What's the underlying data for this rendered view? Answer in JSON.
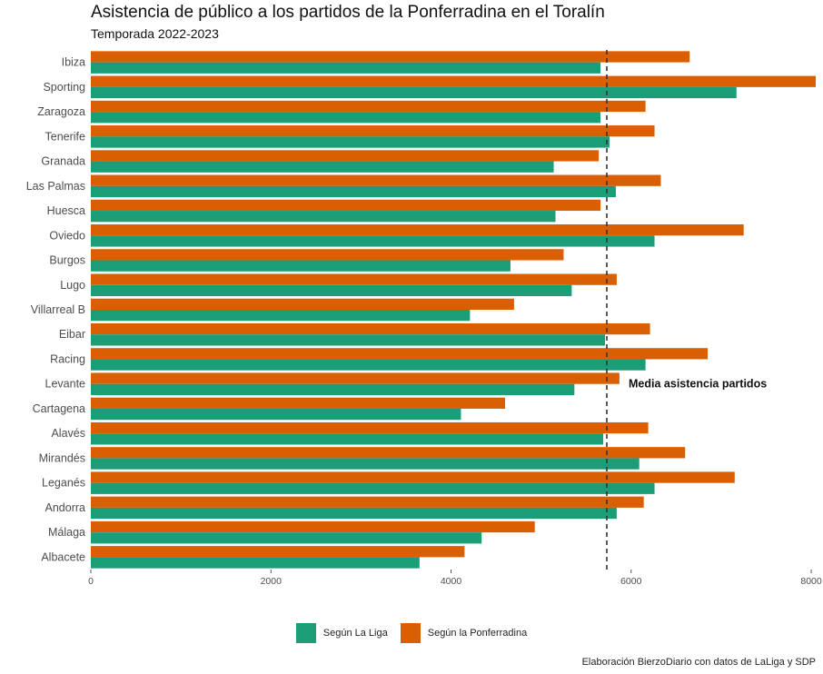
{
  "chart_data": {
    "type": "bar",
    "orientation": "horizontal",
    "title": "Asistencia de público a los partidos de la Ponferradina en el Toralín",
    "subtitle": "Temporada 2022-2023",
    "caption": "Elaboración BierzoDiario con datos de LaLiga y SDP",
    "categories": [
      "Ibiza",
      "Sporting",
      "Zaragoza",
      "Tenerife",
      "Granada",
      "Las Palmas",
      "Huesca",
      "Oviedo",
      "Burgos",
      "Lugo",
      "Villarreal B",
      "Eibar",
      "Racing",
      "Levante",
      "Cartagena",
      "Alavés",
      "Mirandés",
      "Leganés",
      "Andorra",
      "Málaga",
      "Albacete"
    ],
    "series": [
      {
        "name": "Según la Ponferradina",
        "color": "#d95f02",
        "values": [
          6650,
          8050,
          6160,
          6260,
          5640,
          6330,
          5660,
          7250,
          5250,
          5840,
          4700,
          6210,
          6850,
          5870,
          4600,
          6190,
          6600,
          7150,
          6140,
          4930,
          4150
        ]
      },
      {
        "name": "Según La Liga",
        "color": "#1b9e77",
        "values": [
          5660,
          7170,
          5660,
          5760,
          5140,
          5830,
          5160,
          6260,
          4660,
          5340,
          4210,
          5710,
          6160,
          5370,
          4110,
          5690,
          6090,
          6260,
          5840,
          4340,
          3650
        ]
      }
    ],
    "xlim": [
      0,
      8050
    ],
    "xticks": [
      0,
      2000,
      4000,
      6000,
      8000
    ],
    "reference_line": {
      "value": 5730,
      "label": "Media asistencia partidos",
      "style": "dashed"
    },
    "grid": false,
    "legend": {
      "position": "bottom",
      "entries": [
        "Según La Liga",
        "Según la Ponferradina"
      ]
    }
  }
}
